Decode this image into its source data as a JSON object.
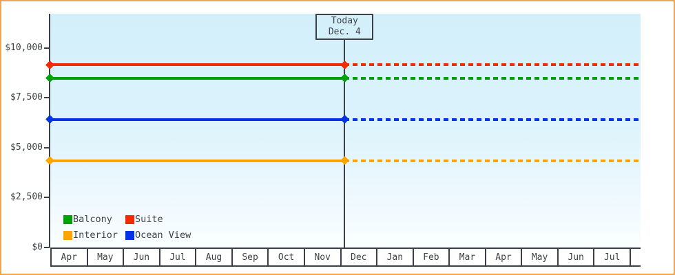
{
  "window": {
    "frame_border_color": "#eba757",
    "background_color": "#ffffff",
    "plot_bg_top_color": "#d2effa",
    "plot_bg_bottom_color": "#fbfeff",
    "axis_color": "#3a4046"
  },
  "chart_data": {
    "type": "line",
    "title": "",
    "xlabel": "",
    "ylabel": "",
    "grid": "off",
    "x_categories": [
      "Apr",
      "May",
      "Jun",
      "Jul",
      "Aug",
      "Sep",
      "Oct",
      "Nov",
      "Dec",
      "Jan",
      "Feb",
      "Mar",
      "Apr",
      "May",
      "Jun",
      "Jul"
    ],
    "y_axis_ticks": [
      {
        "label": "$0",
        "value": 0
      },
      {
        "label": "$2,500",
        "value": 2500
      },
      {
        "label": "$5,000",
        "value": 5000
      },
      {
        "label": "$7,500",
        "value": 7500
      },
      {
        "label": "$10,000",
        "value": 10000
      }
    ],
    "ylim": [
      0,
      11700
    ],
    "series": [
      {
        "name": "Suite",
        "color": "#f42a02",
        "value": 9150,
        "style": "solid-before-today-dotted-after"
      },
      {
        "name": "Balcony",
        "color": "#00a008",
        "value": 8470,
        "style": "solid-before-today-dotted-after"
      },
      {
        "name": "Ocean View",
        "color": "#0233e8",
        "value": 6400,
        "style": "solid-before-today-dotted-after"
      },
      {
        "name": "Interior",
        "color": "#ffa400",
        "value": 4330,
        "style": "solid-before-today-dotted-after"
      }
    ],
    "annotation": {
      "line1": "Today",
      "line2": "Dec. 4",
      "month_index": 8,
      "day_fraction": 0.13
    },
    "legend_rows": [
      [
        "Balcony",
        "Suite"
      ],
      [
        "Interior",
        "Ocean View"
      ]
    ],
    "legend_position": "bottom-left-inside"
  }
}
